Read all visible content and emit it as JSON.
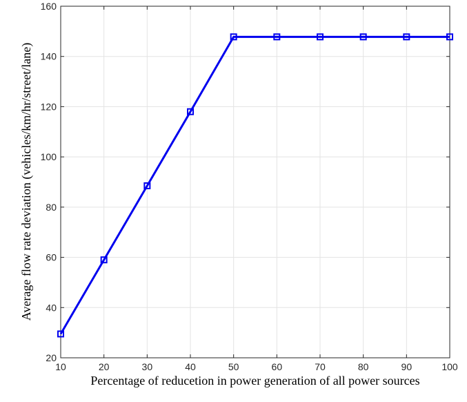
{
  "chart_data": {
    "type": "line",
    "title": "",
    "xlabel": "Percentage of reducetion in power generation of all power sources",
    "ylabel": "Average flow rate deviation (vehicles/km/hr/street/lane)",
    "xlim": [
      10,
      100
    ],
    "ylim": [
      20,
      160
    ],
    "xticks": [
      "10",
      "20",
      "30",
      "40",
      "50",
      "60",
      "70",
      "80",
      "90",
      "100"
    ],
    "yticks": [
      "20",
      "40",
      "60",
      "80",
      "100",
      "120",
      "140",
      "160"
    ],
    "grid": true,
    "legend": "none",
    "marker": "square",
    "color": "#0000ee",
    "series": [
      {
        "x": [
          10,
          20,
          30,
          40,
          50,
          60,
          70,
          80,
          90,
          100
        ],
        "values": [
          29.5,
          59,
          88.5,
          118,
          147.8,
          147.8,
          147.8,
          147.8,
          147.8,
          147.8
        ]
      }
    ]
  }
}
